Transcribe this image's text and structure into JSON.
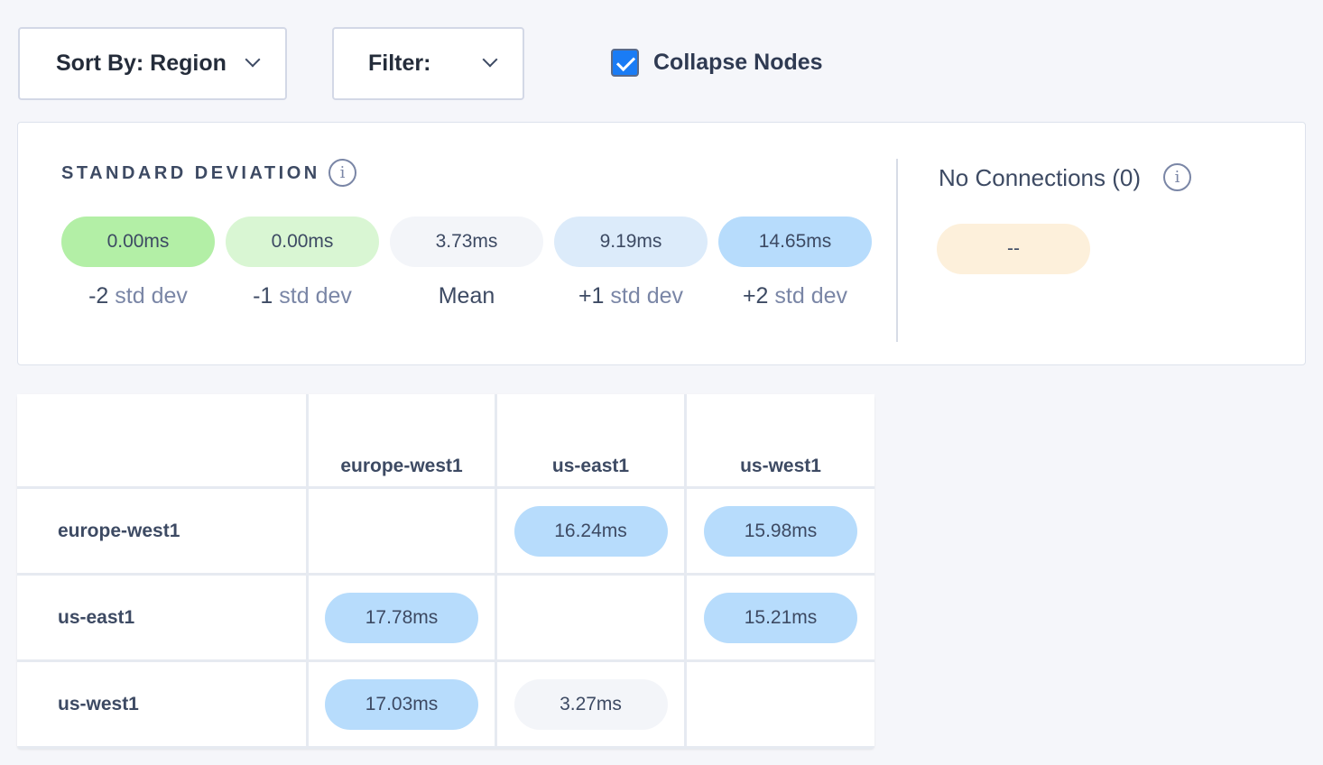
{
  "toolbar": {
    "sort_label": "Sort By: Region",
    "filter_label": "Filter:",
    "collapse_label": "Collapse Nodes",
    "collapse_checked": true
  },
  "stats": {
    "title": "STANDARD DEVIATION",
    "items": [
      {
        "value": "0.00ms",
        "prefix": "-2",
        "suffix": " std dev",
        "color": "#b3efa6"
      },
      {
        "value": "0.00ms",
        "prefix": "-1",
        "suffix": " std dev",
        "color": "#d9f6d3"
      },
      {
        "value": "3.73ms",
        "prefix": "Mean",
        "suffix": "",
        "color": "#f3f5f9"
      },
      {
        "value": "9.19ms",
        "prefix": "+1",
        "suffix": " std dev",
        "color": "#dcebfa"
      },
      {
        "value": "14.65ms",
        "prefix": "+2",
        "suffix": " std dev",
        "color": "#b7dcfc"
      }
    ],
    "no_connections": {
      "label": "No Connections (0)",
      "value": "--",
      "color": "#fdf0db"
    }
  },
  "matrix": {
    "columns": [
      "europe-west1",
      "us-east1",
      "us-west1"
    ],
    "rows": [
      {
        "label": "europe-west1",
        "cells": [
          null,
          {
            "value": "16.24ms",
            "color": "#b7dcfc"
          },
          {
            "value": "15.98ms",
            "color": "#b7dcfc"
          }
        ]
      },
      {
        "label": "us-east1",
        "cells": [
          {
            "value": "17.78ms",
            "color": "#b7dcfc"
          },
          null,
          {
            "value": "15.21ms",
            "color": "#b7dcfc"
          }
        ]
      },
      {
        "label": "us-west1",
        "cells": [
          {
            "value": "17.03ms",
            "color": "#b7dcfc"
          },
          {
            "value": "3.27ms",
            "color": "#f3f5f9"
          },
          null
        ]
      }
    ]
  }
}
